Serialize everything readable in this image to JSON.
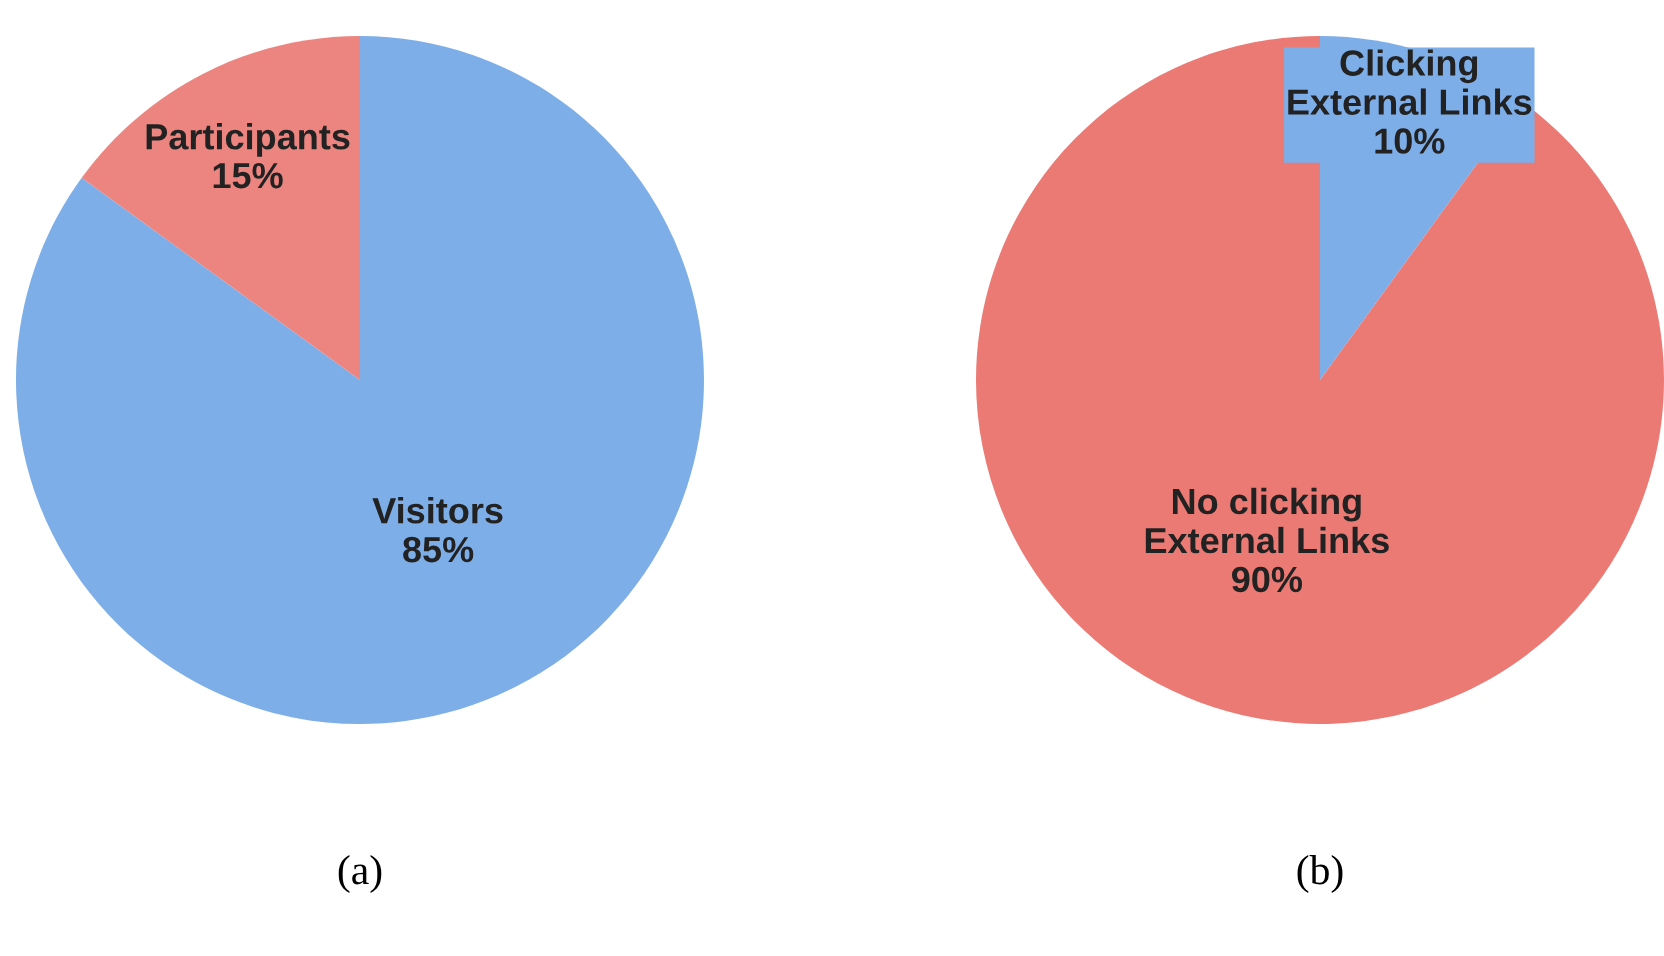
{
  "chart_data": [
    {
      "type": "pie",
      "xlabel": "(a)",
      "categories": [
        "Visitors",
        "Participants"
      ],
      "values": [
        85,
        15
      ],
      "colors": [
        "#7eaee8",
        "#ec8580"
      ],
      "value_labels": [
        "85%",
        "15%"
      ]
    },
    {
      "type": "pie",
      "xlabel": "(b)",
      "categories": [
        "Clicking\nExternal Links",
        "No clicking\nExternal Links"
      ],
      "values": [
        10,
        90
      ],
      "colors": [
        "#7eaee8",
        "#ec7a74"
      ],
      "value_labels": [
        "10%",
        "90%"
      ]
    }
  ]
}
